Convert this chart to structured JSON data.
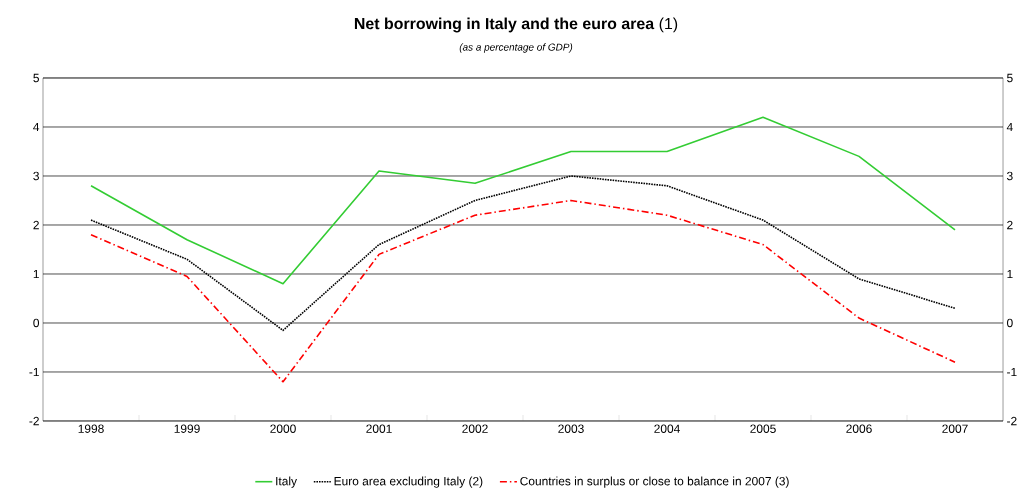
{
  "chart_data": {
    "type": "line",
    "title": "**Net borrowing in Italy and the euro area** (1)",
    "subtitle": "*(as a percentage of GDP)*",
    "categories": [
      "1998",
      "1999",
      "2000",
      "2001",
      "2002",
      "2003",
      "2004",
      "2005",
      "2006",
      "2007"
    ],
    "series": [
      {
        "name": "Italy",
        "color": "#33cc33",
        "line_style": "solid",
        "values": [
          2.8,
          1.7,
          0.8,
          3.1,
          2.85,
          3.5,
          3.5,
          4.2,
          3.4,
          1.9
        ]
      },
      {
        "name": "Euro area excluding Italy (2)",
        "color": "#000000",
        "line_style": "dotted",
        "values": [
          2.1,
          1.3,
          -0.15,
          1.6,
          2.5,
          3.0,
          2.8,
          2.1,
          0.9,
          0.3
        ]
      },
      {
        "name": "Countries in surplus or close to balance in 2007 (3)",
        "color": "#ff0000",
        "line_style": "dashed",
        "values": [
          1.8,
          0.95,
          -1.2,
          1.4,
          2.2,
          2.5,
          2.2,
          1.6,
          0.1,
          -0.8
        ]
      }
    ],
    "ylim": [
      -2,
      5
    ],
    "yticks": [
      -2,
      -1,
      0,
      1,
      2,
      3,
      4,
      5
    ],
    "y2lim": [
      -2,
      5
    ],
    "y2ticks": [
      -2,
      -1,
      0,
      1,
      2,
      3,
      4,
      5
    ],
    "grid": "y",
    "legend": "bottom",
    "marker": "none"
  }
}
